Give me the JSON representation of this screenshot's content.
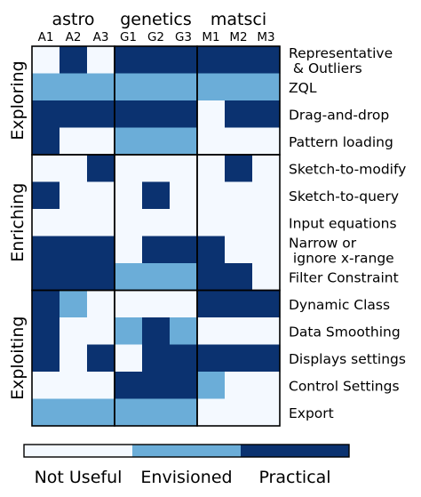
{
  "chart_data": {
    "type": "heatmap",
    "title": "",
    "xlabel": "",
    "ylabel": "",
    "domains": [
      "astro",
      "genetics",
      "matsci"
    ],
    "participants": [
      "A1",
      "A2",
      "A3",
      "G1",
      "G2",
      "G3",
      "M1",
      "M2",
      "M3"
    ],
    "categories": [
      "Exploring",
      "Enriching",
      "Exploiting"
    ],
    "features": [
      "Representative\n & Outliers",
      "ZQL",
      "Drag-and-drop",
      "Pattern loading",
      "Sketch-to-modify",
      "Sketch-to-query",
      "Input equations",
      "Narrow or\n ignore x-range",
      "Filter Constraint",
      "Dynamic Class",
      "Data Smoothing",
      "Displays settings",
      "Control Settings",
      "Export"
    ],
    "category_of_feature": [
      "Exploring",
      "Exploring",
      "Exploring",
      "Exploring",
      "Enriching",
      "Enriching",
      "Enriching",
      "Enriching",
      "Enriching",
      "Exploiting",
      "Exploiting",
      "Exploiting",
      "Exploiting",
      "Exploiting"
    ],
    "levels": [
      "Not Useful",
      "Envisioned",
      "Practical"
    ],
    "level_colors": [
      "#f4f9ff",
      "#6badd8",
      "#0b3270"
    ],
    "values": [
      [
        0,
        2,
        0,
        2,
        2,
        2,
        2,
        2,
        2
      ],
      [
        1,
        1,
        1,
        1,
        1,
        1,
        1,
        1,
        1
      ],
      [
        2,
        2,
        2,
        2,
        2,
        2,
        0,
        2,
        2
      ],
      [
        2,
        0,
        0,
        1,
        1,
        1,
        0,
        0,
        0
      ],
      [
        0,
        0,
        2,
        0,
        0,
        0,
        0,
        2,
        0
      ],
      [
        2,
        0,
        0,
        0,
        2,
        0,
        0,
        0,
        0
      ],
      [
        0,
        0,
        0,
        0,
        0,
        0,
        0,
        0,
        0
      ],
      [
        2,
        2,
        2,
        0,
        2,
        2,
        2,
        0,
        0
      ],
      [
        2,
        2,
        2,
        1,
        1,
        1,
        2,
        2,
        0
      ],
      [
        2,
        1,
        0,
        0,
        0,
        0,
        2,
        2,
        2
      ],
      [
        2,
        0,
        0,
        1,
        2,
        1,
        0,
        0,
        0
      ],
      [
        2,
        0,
        2,
        0,
        2,
        2,
        2,
        2,
        2
      ],
      [
        0,
        0,
        0,
        2,
        2,
        2,
        1,
        0,
        0
      ],
      [
        1,
        1,
        1,
        1,
        1,
        1,
        0,
        0,
        0
      ]
    ]
  }
}
